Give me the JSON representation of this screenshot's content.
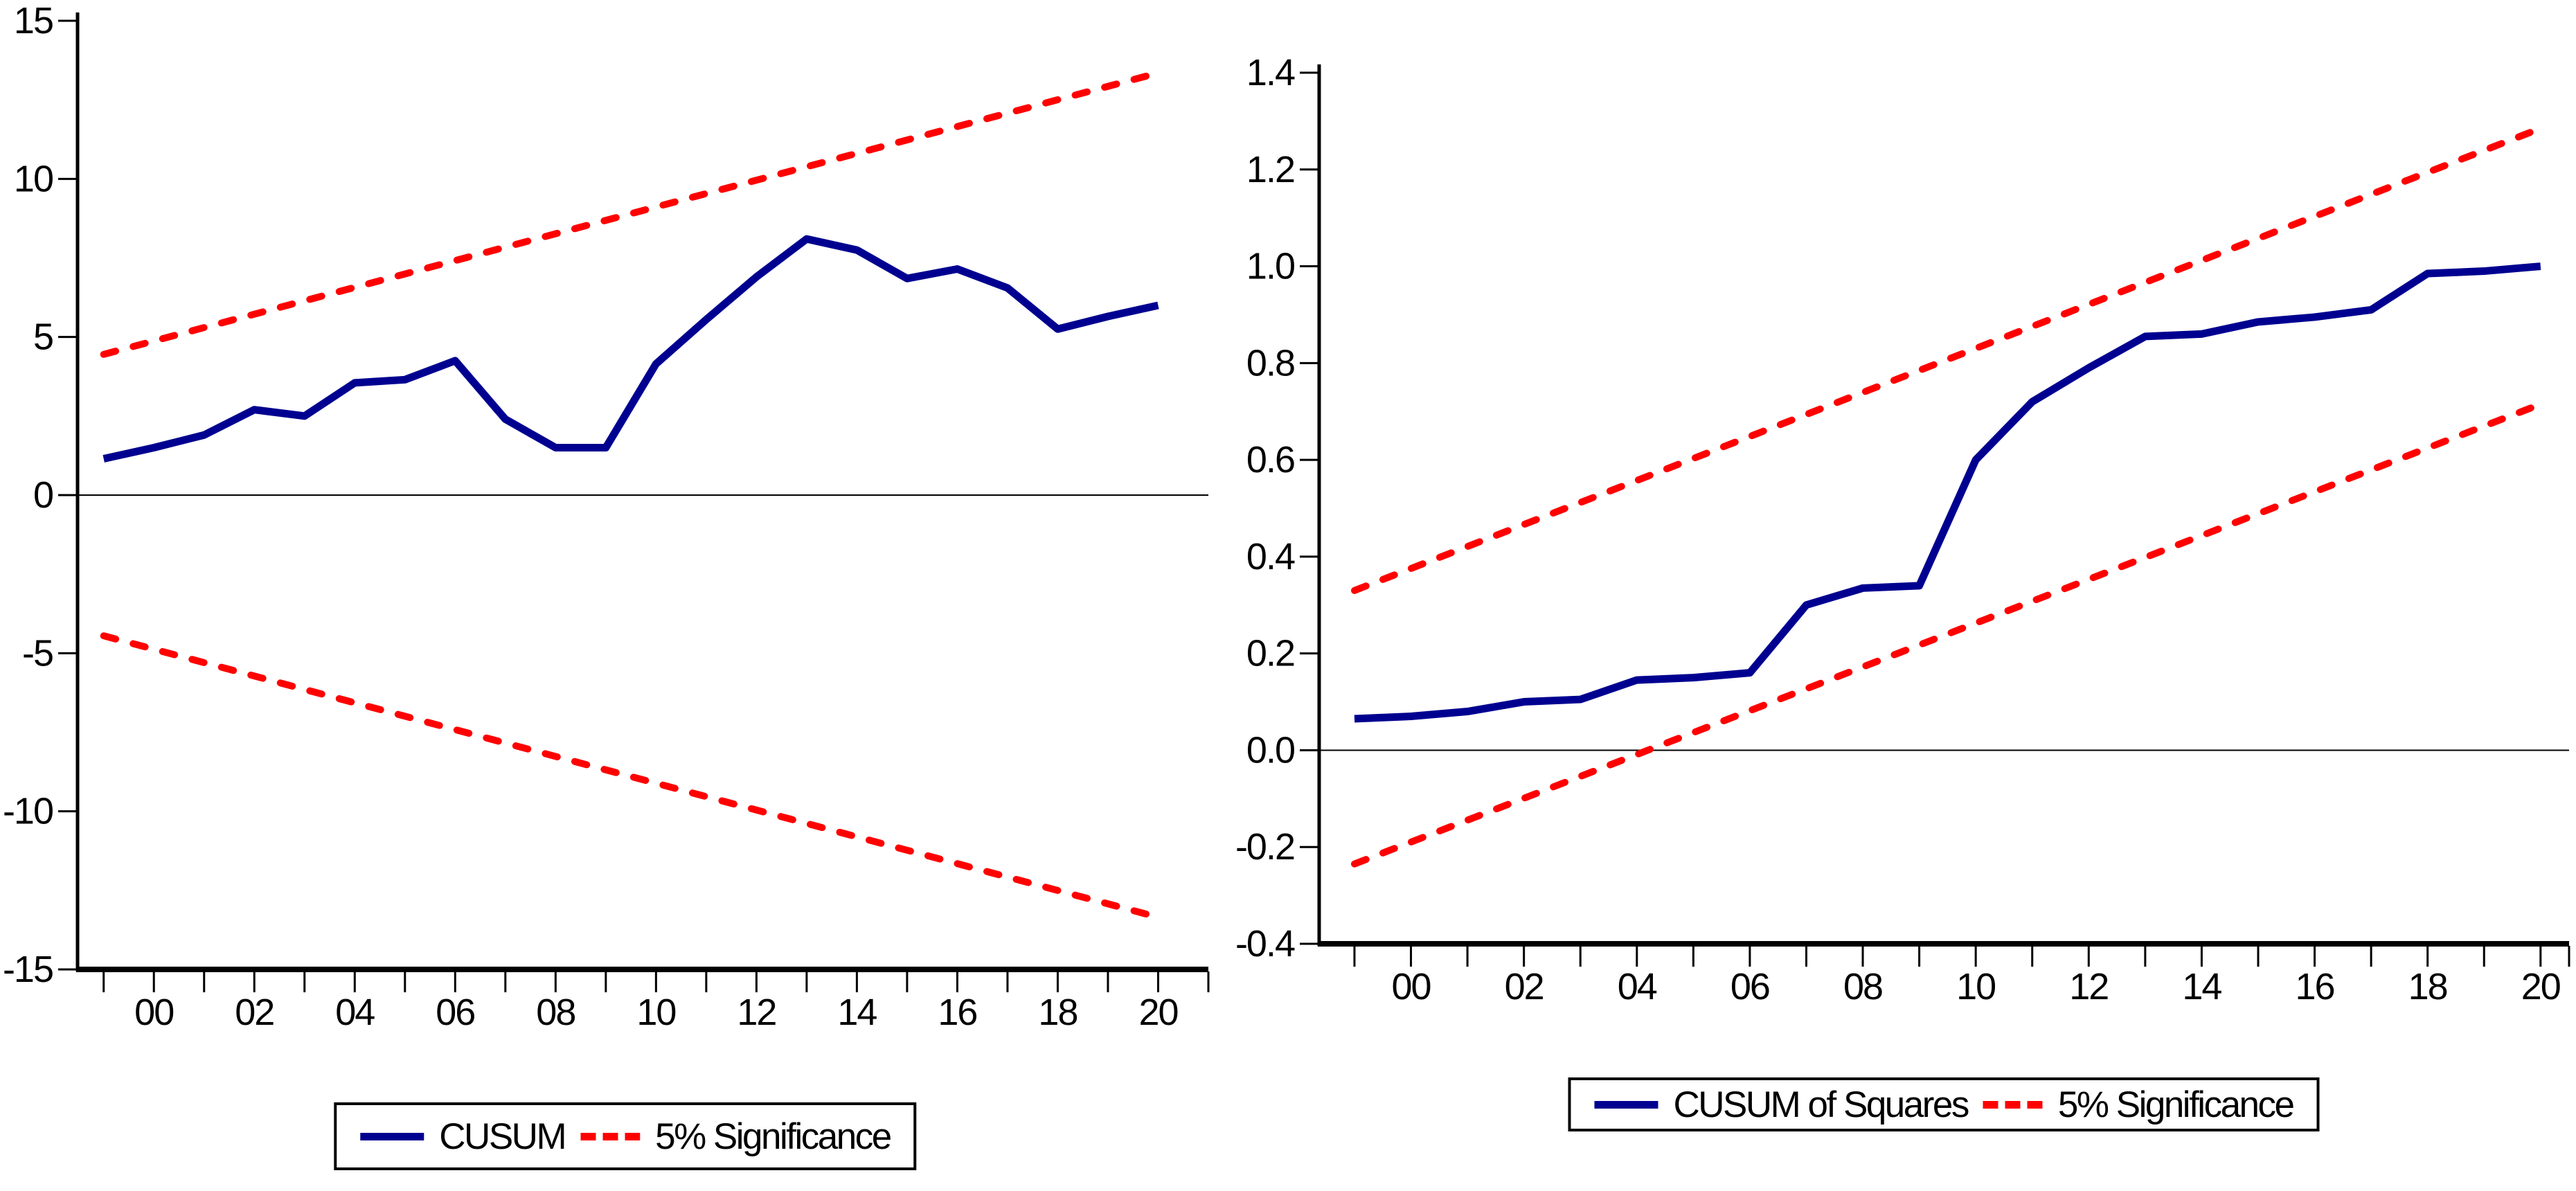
{
  "page": {
    "background": "#FFFFFF"
  },
  "colors": {
    "series_line": "#000090",
    "significance_line": "#FF0000",
    "axis": "#000000",
    "zero_line": "#000000",
    "text": "#000000"
  },
  "chart_data": [
    {
      "type": "line",
      "id": "cusum",
      "title": "",
      "x": [
        1999,
        2000,
        2001,
        2002,
        2003,
        2004,
        2005,
        2006,
        2007,
        2008,
        2009,
        2010,
        2011,
        2012,
        2013,
        2014,
        2015,
        2016,
        2017,
        2018,
        2019,
        2020
      ],
      "series": [
        {
          "id": "cusum-line",
          "name": "CUSUM",
          "color": "#000090",
          "style": "solid",
          "values": [
            1.15,
            1.5,
            1.9,
            2.7,
            2.5,
            3.55,
            3.65,
            4.25,
            2.4,
            1.5,
            1.5,
            4.15,
            5.55,
            6.9,
            8.1,
            7.75,
            6.85,
            7.15,
            6.55,
            5.25,
            5.65,
            6.0
          ]
        },
        {
          "id": "significance-upper",
          "name": "5% Significance (upper)",
          "color": "#FF0000",
          "style": "dashed",
          "x": [
            1999,
            2020
          ],
          "values": [
            4.45,
            13.35
          ]
        },
        {
          "id": "significance-lower",
          "name": "5% Significance (lower)",
          "color": "#FF0000",
          "style": "dashed",
          "x": [
            1999,
            2020
          ],
          "values": [
            -4.45,
            -13.35
          ]
        }
      ],
      "xlim": [
        1998.48,
        2021.0
      ],
      "ylim": [
        -15,
        15
      ],
      "yticks": [
        15,
        10,
        5,
        0,
        -5,
        -10,
        -15
      ],
      "ytick_labels": [
        "15",
        "10",
        "5",
        "0",
        "-5",
        "-10",
        "-15"
      ],
      "x_tick_years": [
        2000,
        2002,
        2004,
        2006,
        2008,
        2010,
        2012,
        2014,
        2016,
        2018,
        2020
      ],
      "x_tick_labels": [
        "00",
        "02",
        "04",
        "06",
        "08",
        "10",
        "12",
        "14",
        "16",
        "18",
        "20"
      ],
      "xticks_minor": {
        "from": 1999,
        "to": 2020,
        "step": 1
      },
      "zero_line": true,
      "grid": false,
      "legend": [
        "CUSUM",
        "5% Significance"
      ],
      "legend_position": "bottom"
    },
    {
      "type": "line",
      "id": "cusumsq",
      "title": "",
      "x": [
        1999,
        2000,
        2001,
        2002,
        2003,
        2004,
        2005,
        2006,
        2007,
        2008,
        2009,
        2010,
        2011,
        2012,
        2013,
        2014,
        2015,
        2016,
        2017,
        2018,
        2019,
        2020
      ],
      "series": [
        {
          "id": "cusumsq-line",
          "name": "CUSUM of Squares",
          "color": "#000090",
          "style": "solid",
          "values": [
            0.065,
            0.07,
            0.08,
            0.1,
            0.105,
            0.145,
            0.15,
            0.16,
            0.3,
            0.335,
            0.34,
            0.6,
            0.72,
            0.79,
            0.855,
            0.86,
            0.885,
            0.895,
            0.91,
            0.985,
            0.99,
            1.0
          ]
        },
        {
          "id": "significance-upper",
          "name": "5% Significance (upper)",
          "color": "#FF0000",
          "style": "dashed",
          "x": [
            1999,
            2020
          ],
          "values": [
            0.33,
            1.285
          ]
        },
        {
          "id": "significance-lower",
          "name": "5% Significance (lower)",
          "color": "#FF0000",
          "style": "dashed",
          "x": [
            1999,
            2020
          ],
          "values": [
            -0.235,
            0.715
          ]
        }
      ],
      "xlim": [
        1998.375,
        2020.505
      ],
      "ylim": [
        -0.4,
        1.4
      ],
      "yticks": [
        1.4,
        1.2,
        1.0,
        0.8,
        0.6,
        0.4,
        0.2,
        0.0,
        -0.2,
        -0.4
      ],
      "ytick_labels": [
        "1.4",
        "1.2",
        "1.0",
        "0.8",
        "0.6",
        "0.4",
        "0.2",
        "0.0",
        "-0.2",
        "-0.4"
      ],
      "x_tick_years": [
        2000,
        2002,
        2004,
        2006,
        2008,
        2010,
        2012,
        2014,
        2016,
        2018,
        2020
      ],
      "x_tick_labels": [
        "00",
        "02",
        "04",
        "06",
        "08",
        "10",
        "12",
        "14",
        "16",
        "18",
        "20"
      ],
      "xticks_minor": {
        "from": 1999,
        "to": 2020,
        "step": 1
      },
      "zero_line": true,
      "grid": false,
      "legend": [
        "CUSUM of Squares",
        "5% Significance"
      ],
      "legend_position": "bottom"
    }
  ]
}
